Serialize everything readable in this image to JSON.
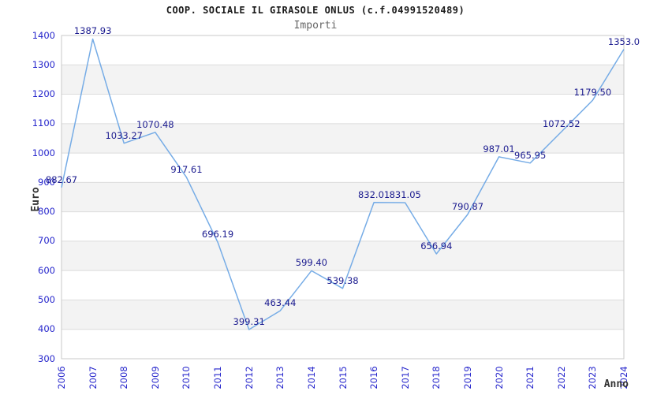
{
  "title": "COOP. SOCIALE IL GIRASOLE ONLUS (c.f.04991520489)",
  "subtitle": "Importi",
  "chart_data": {
    "type": "line",
    "title": "COOP. SOCIALE IL GIRASOLE ONLUS (c.f.04991520489)",
    "subtitle": "Importi",
    "xlabel": "Anno",
    "ylabel": "Euro",
    "x": [
      "2006",
      "2007",
      "2008",
      "2009",
      "2010",
      "2011",
      "2012",
      "2013",
      "2014",
      "2015",
      "2016",
      "2017",
      "2018",
      "2019",
      "2020",
      "2021",
      "2022",
      "2023",
      "2024"
    ],
    "values": [
      882.67,
      1387.93,
      1033.27,
      1070.48,
      917.61,
      696.19,
      399.31,
      463.44,
      599.4,
      539.38,
      832.01,
      831.05,
      656.94,
      790.87,
      987.01,
      965.95,
      1072.52,
      1179.5,
      1353.0
    ],
    "point_labels": [
      "882.67",
      "1387.93",
      "1033.27",
      "1070.48",
      "917.61",
      "696.19",
      "399.31",
      "463.44",
      "599.40",
      "539.38",
      "832.01",
      "831.05",
      "656.94",
      "790.87",
      "987.01",
      "965.95",
      "1072.52",
      "1179.50",
      "1353.0"
    ],
    "ylim": [
      300,
      1400
    ],
    "ytick_step": 100,
    "grid": "horizontal",
    "legend": "none",
    "colors": {
      "line": "#76ACE6",
      "tick_label": "#2626CC",
      "point_label": "#1B1B8F",
      "band": "#F3F3F3",
      "grid": "#DCDCDC",
      "border": "#C9C9C9",
      "title": "#1A1A1A",
      "subtitle": "#666666",
      "axis_name": "#333333"
    }
  }
}
